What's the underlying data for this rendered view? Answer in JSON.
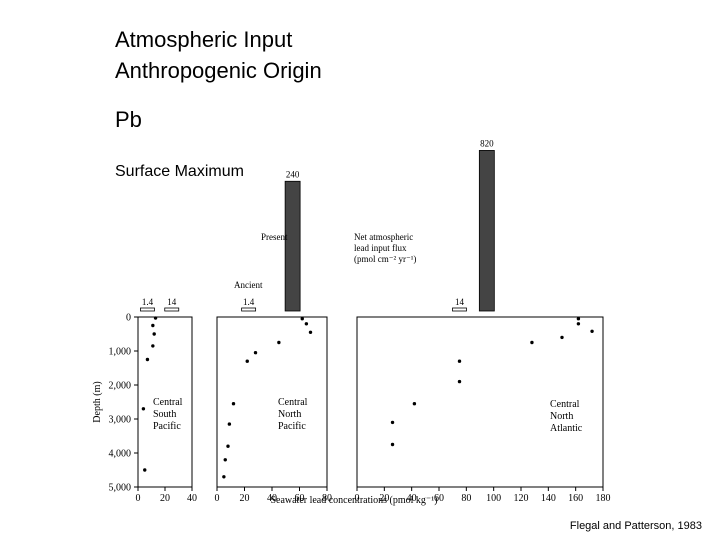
{
  "slide": {
    "title_line1": "Atmospheric Input",
    "title_line2": "Anthropogenic Origin",
    "element": "Pb",
    "subtitle": "Surface Maximum",
    "citation": "Flegal and Patterson, 1983"
  },
  "chart_data": {
    "type": "scatter",
    "xlabel": "Seawater lead concentrations (pmol kg⁻¹)",
    "ylabel": "Depth (m)",
    "y_ticks": [
      "0",
      "1,000",
      "2,000",
      "3,000",
      "4,000",
      "5,000"
    ],
    "ylim": [
      0,
      5000
    ],
    "grid": false,
    "flux_legend": {
      "line1": "Net atmospheric",
      "line2": "lead input flux",
      "line3": "(pmol cm⁻² yr⁻¹)"
    },
    "flux_color": "#444444",
    "panels": [
      {
        "name": "Central South Pacific",
        "label_lines": [
          "Central",
          "South",
          "Pacific"
        ],
        "xlim": [
          0,
          40
        ],
        "x_ticks": [
          "0",
          "20",
          "40"
        ],
        "points": [
          {
            "x": 13,
            "y": 30
          },
          {
            "x": 11,
            "y": 250
          },
          {
            "x": 12,
            "y": 500
          },
          {
            "x": 11,
            "y": 850
          },
          {
            "x": 7,
            "y": 1250
          },
          {
            "x": 4,
            "y": 2700
          },
          {
            "x": 5,
            "y": 4500
          }
        ],
        "flux": [
          {
            "label": "1.4",
            "value": 1.4,
            "x": 7
          },
          {
            "label": "14",
            "value": 14,
            "x": 25
          }
        ]
      },
      {
        "name": "Central North Pacific",
        "label_lines": [
          "Central",
          "North",
          "Pacific"
        ],
        "xlim": [
          0,
          80
        ],
        "x_ticks": [
          "0",
          "20",
          "40",
          "60",
          "80"
        ],
        "points": [
          {
            "x": 62,
            "y": 50
          },
          {
            "x": 65,
            "y": 200
          },
          {
            "x": 68,
            "y": 450
          },
          {
            "x": 45,
            "y": 750
          },
          {
            "x": 28,
            "y": 1050
          },
          {
            "x": 22,
            "y": 1300
          },
          {
            "x": 12,
            "y": 2550
          },
          {
            "x": 9,
            "y": 3150
          },
          {
            "x": 8,
            "y": 3800
          },
          {
            "x": 6,
            "y": 4200
          },
          {
            "x": 5,
            "y": 4700
          }
        ],
        "flux": [
          {
            "label": "1.4",
            "value": 1.4,
            "x": 23,
            "era": "Ancient"
          },
          {
            "label": "240",
            "value": 240,
            "x": 55,
            "era": "Present"
          }
        ],
        "era_labels": {
          "present": "Present",
          "ancient": "Ancient"
        }
      },
      {
        "name": "Central North Atlantic",
        "label_lines": [
          "Central",
          "North",
          "Atlantic"
        ],
        "xlim": [
          0,
          180
        ],
        "x_ticks": [
          "0",
          "20",
          "40",
          "60",
          "80",
          "100",
          "120",
          "140",
          "160",
          "180"
        ],
        "points": [
          {
            "x": 162,
            "y": 50
          },
          {
            "x": 162,
            "y": 200
          },
          {
            "x": 172,
            "y": 420
          },
          {
            "x": 150,
            "y": 600
          },
          {
            "x": 128,
            "y": 750
          },
          {
            "x": 75,
            "y": 1300
          },
          {
            "x": 75,
            "y": 1900
          },
          {
            "x": 42,
            "y": 2550
          },
          {
            "x": 26,
            "y": 3100
          },
          {
            "x": 26,
            "y": 3750
          }
        ],
        "flux": [
          {
            "label": "14",
            "value": 14,
            "x": 75
          },
          {
            "label": "820",
            "value": 820,
            "x": 95
          }
        ]
      }
    ]
  }
}
